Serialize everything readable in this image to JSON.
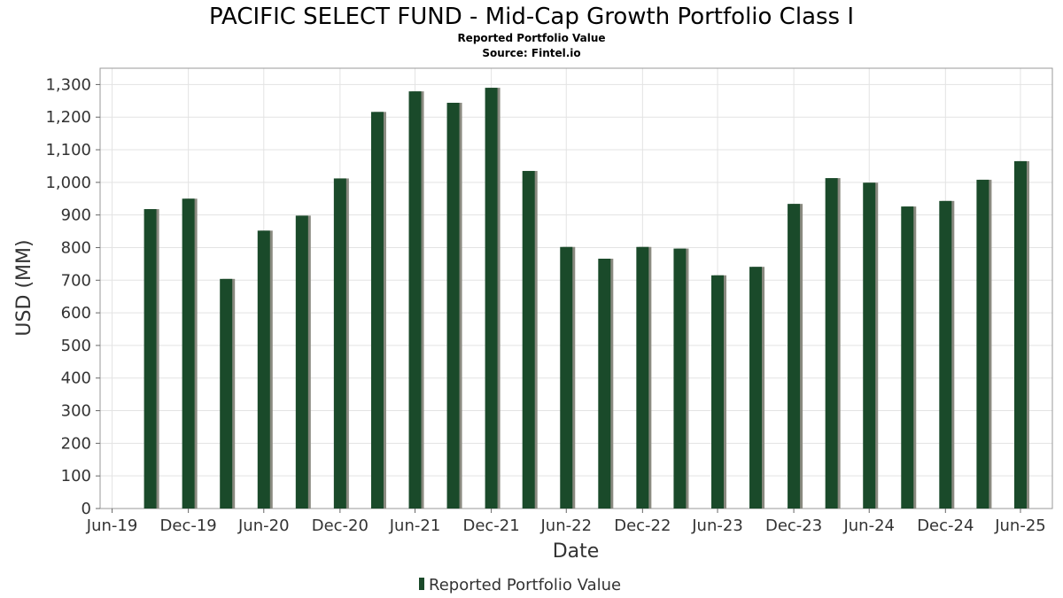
{
  "title": "PACIFIC SELECT FUND - Mid-Cap Growth Portfolio Class I",
  "subtitle": "Reported Portfolio Value",
  "source": "Source: Fintel.io",
  "colors": {
    "bar": "#1a4a2a",
    "bar_shadow": "#8a8a80",
    "grid": "#e3e3e3",
    "frame": "#999999"
  },
  "chart_data": {
    "type": "bar",
    "title": "PACIFIC SELECT FUND - Mid-Cap Growth Portfolio Class I",
    "subtitle": "Reported Portfolio Value",
    "xlabel": "Date",
    "ylabel": "USD (MM)",
    "ylim": [
      0,
      1350
    ],
    "yticks": [
      0,
      100,
      200,
      300,
      400,
      500,
      600,
      700,
      800,
      900,
      1000,
      1100,
      1200,
      1300
    ],
    "ytick_labels": [
      "0",
      "100",
      "200",
      "300",
      "400",
      "500",
      "600",
      "700",
      "800",
      "900",
      "1,000",
      "1,100",
      "1,200",
      "1,300"
    ],
    "xlim": [
      "2019-06-01",
      "2025-09-15"
    ],
    "xticks": [
      "2019-06-30",
      "2019-12-31",
      "2020-06-30",
      "2020-12-31",
      "2021-06-30",
      "2021-12-31",
      "2022-06-30",
      "2022-12-31",
      "2023-06-30",
      "2023-12-31",
      "2024-06-30",
      "2024-12-31",
      "2025-06-30"
    ],
    "xtick_labels": [
      "Jun-19",
      "Dec-19",
      "Jun-20",
      "Dec-20",
      "Jun-21",
      "Dec-21",
      "Jun-22",
      "Dec-22",
      "Jun-23",
      "Dec-23",
      "Jun-24",
      "Dec-24",
      "Jun-25"
    ],
    "grid": true,
    "legend": "bottom-center",
    "series": [
      {
        "name": "Reported Portfolio Value",
        "x": [
          "2019-09-30",
          "2019-12-31",
          "2020-03-31",
          "2020-06-30",
          "2020-09-30",
          "2020-12-31",
          "2021-03-31",
          "2021-06-30",
          "2021-09-30",
          "2021-12-31",
          "2022-03-31",
          "2022-06-30",
          "2022-09-30",
          "2022-12-31",
          "2023-03-31",
          "2023-06-30",
          "2023-09-30",
          "2023-12-31",
          "2024-03-31",
          "2024-06-30",
          "2024-09-30",
          "2024-12-31",
          "2025-03-31",
          "2025-06-30"
        ],
        "values": [
          918,
          950,
          704,
          852,
          898,
          1012,
          1216,
          1279,
          1244,
          1290,
          1035,
          802,
          766,
          802,
          797,
          715,
          741,
          934,
          1013,
          999,
          926,
          943,
          1008,
          1065
        ]
      }
    ]
  }
}
